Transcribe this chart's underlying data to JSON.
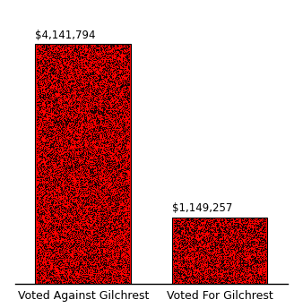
{
  "categories": [
    "Voted Against Gilchrest",
    "Voted For Gilchrest"
  ],
  "values": [
    4141794,
    1149257
  ],
  "labels": [
    "$4,141,794",
    "$1,149,257"
  ],
  "bar_color_red": "#ff0000",
  "bar_color_black": "#000000",
  "background_color": "#ffffff",
  "ylim": [
    0,
    4800000
  ],
  "bar_width": 0.35,
  "label_fontsize": 8.5,
  "tick_fontsize": 9,
  "x_positions": [
    0.25,
    0.75
  ],
  "xlim": [
    0,
    1.0
  ]
}
